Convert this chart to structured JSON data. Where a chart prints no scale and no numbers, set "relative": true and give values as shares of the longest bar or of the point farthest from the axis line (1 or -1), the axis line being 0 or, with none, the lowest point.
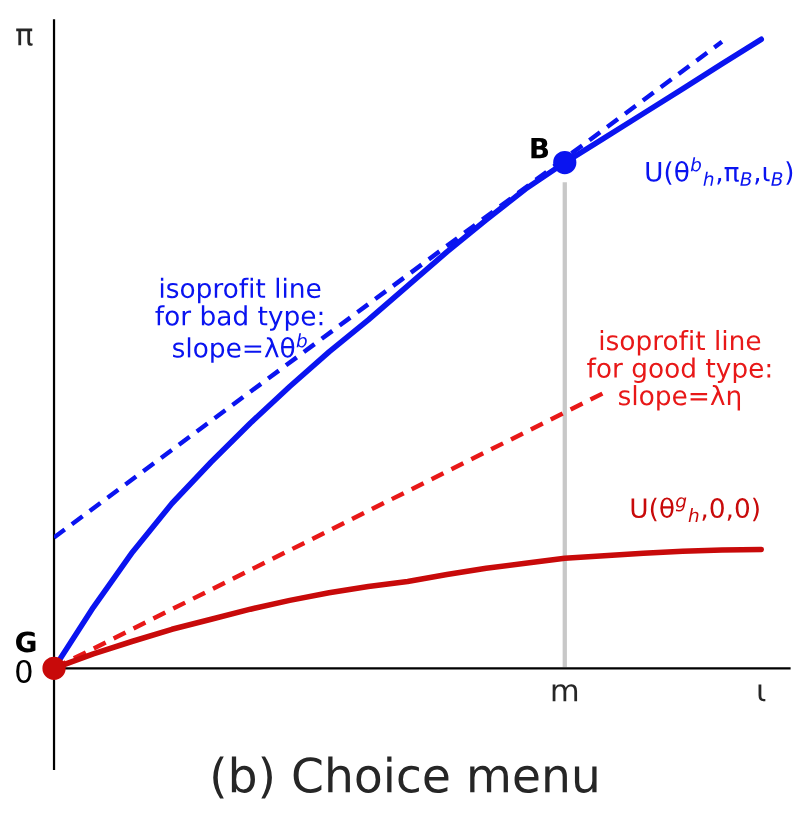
{
  "chart_data": {
    "type": "line",
    "relative": true,
    "title": "(b) Choice menu",
    "ylabel": "π",
    "legend": false,
    "grid": false,
    "categories": [
      null,
      null,
      null,
      null,
      null,
      null,
      null,
      null,
      null,
      null,
      null,
      null,
      null,
      "m",
      null,
      null,
      null,
      null,
      "ι"
    ],
    "series": [
      {
        "type": "bar",
        "color": "#c8c8c8",
        "values": [
          null,
          null,
          null,
          null,
          null,
          null,
          null,
          null,
          null,
          null,
          null,
          null,
          null,
          0.775,
          null,
          null,
          null,
          null,
          null
        ]
      },
      {
        "name": "U(θ$^{b}$$_{h}$,π$_{B}$,ι$_{B}$)",
        "color": "#0a14f0",
        "line_style": "solid",
        "values": [
          0,
          0.097,
          0.185,
          0.262,
          0.328,
          0.39,
          0.448,
          0.503,
          0.554,
          0.608,
          0.662,
          0.713,
          0.762,
          0.804,
          0.843,
          0.882,
          0.921,
          0.961,
          1
        ]
      },
      {
        "color": "#0a14f0",
        "line_style": "dashed",
        "values": [
          0.208,
          null,
          null,
          null,
          null,
          null,
          null,
          null,
          null,
          null,
          null,
          null,
          null,
          null,
          null,
          null,
          null,
          0.996,
          null
        ]
      },
      {
        "color": "#e81818",
        "line_style": "dashed",
        "values": [
          0,
          null,
          null,
          null,
          null,
          null,
          null,
          null,
          null,
          null,
          null,
          null,
          null,
          null,
          0.438,
          null,
          null,
          null,
          null
        ]
      },
      {
        "name": "U(θ$^{g}$$_{h}$,0,0)",
        "color": "#c80a0a",
        "line_style": "solid",
        "values": [
          0,
          0.023,
          0.043,
          0.062,
          0.078,
          0.094,
          0.108,
          0.12,
          0.13,
          0.138,
          0.149,
          0.159,
          0.167,
          0.175,
          0.179,
          0.183,
          0.186,
          0.188,
          0.189
        ]
      },
      {
        "type": "scatter",
        "color": "#0a14f0",
        "values": [
          null,
          null,
          null,
          null,
          null,
          null,
          null,
          null,
          null,
          null,
          null,
          null,
          null,
          0.804,
          null,
          null,
          null,
          null,
          null
        ]
      },
      {
        "type": "scatter",
        "color": "#c80a0a",
        "values": [
          0,
          null,
          null,
          null,
          null,
          null,
          null,
          null,
          null,
          null,
          null,
          null,
          null,
          null,
          null,
          null,
          null,
          null,
          null
        ]
      }
    ],
    "annotations": [
      "isoprofit line\nfor bad type:\nslope=λθ$^{b}$",
      "isoprofit line\nfor good type:\nslope=λη",
      "B",
      "G",
      "0"
    ]
  }
}
